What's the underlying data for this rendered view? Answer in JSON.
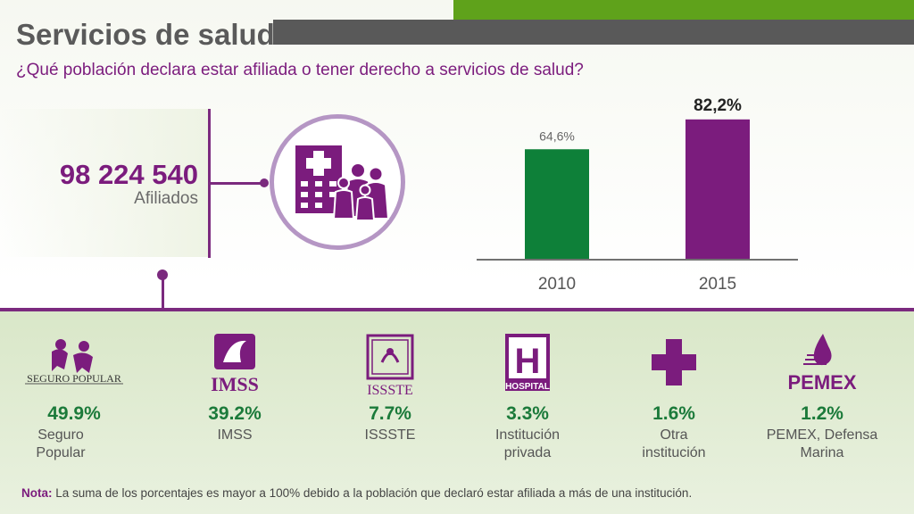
{
  "header": {
    "title": "Servicios de salud",
    "subtitle": "¿Qué población declara estar afiliada o tener derecho a servicios de salud?"
  },
  "stat": {
    "number": "98 224 540",
    "label": "Afiliados"
  },
  "chart_data": {
    "type": "bar",
    "categories": [
      "2010",
      "2015"
    ],
    "values": [
      64.6,
      82.2
    ],
    "value_labels": [
      "64,6%",
      "82,2%"
    ],
    "bar_colors": [
      "#0e8039",
      "#7b1c7d"
    ],
    "title": "",
    "xlabel": "",
    "ylabel": "",
    "ylim": [
      0,
      100
    ]
  },
  "institutions": [
    {
      "logo_text": "SEGURO POPULAR",
      "icon": "seguro-popular-logo",
      "pct": "49.9%",
      "name": "Seguro Popular"
    },
    {
      "logo_text": "IMSS",
      "icon": "imss-logo",
      "pct": "39.2%",
      "name": "IMSS"
    },
    {
      "logo_text": "ISSSTE",
      "icon": "issste-logo",
      "pct": "7.7%",
      "name": "ISSSTE"
    },
    {
      "logo_text": "HOSPITAL",
      "icon": "hospital-logo",
      "pct": "3.3%",
      "name": "Institución privada"
    },
    {
      "logo_text": "",
      "icon": "cross-icon",
      "pct": "1.6%",
      "name": "Otra institución"
    },
    {
      "logo_text": "PEMEX",
      "icon": "pemex-logo",
      "pct": "1.2%",
      "name": "PEMEX, Defensa Marina"
    }
  ],
  "note": {
    "label": "Nota:",
    "text": " La suma de los porcentajes es mayor a 100% debido a la población que declaró estar afiliada a más de una institución."
  },
  "colors": {
    "purple": "#7b1c7d",
    "green": "#0e8039",
    "accent_green": "#5fa21b",
    "gray": "#595959"
  }
}
